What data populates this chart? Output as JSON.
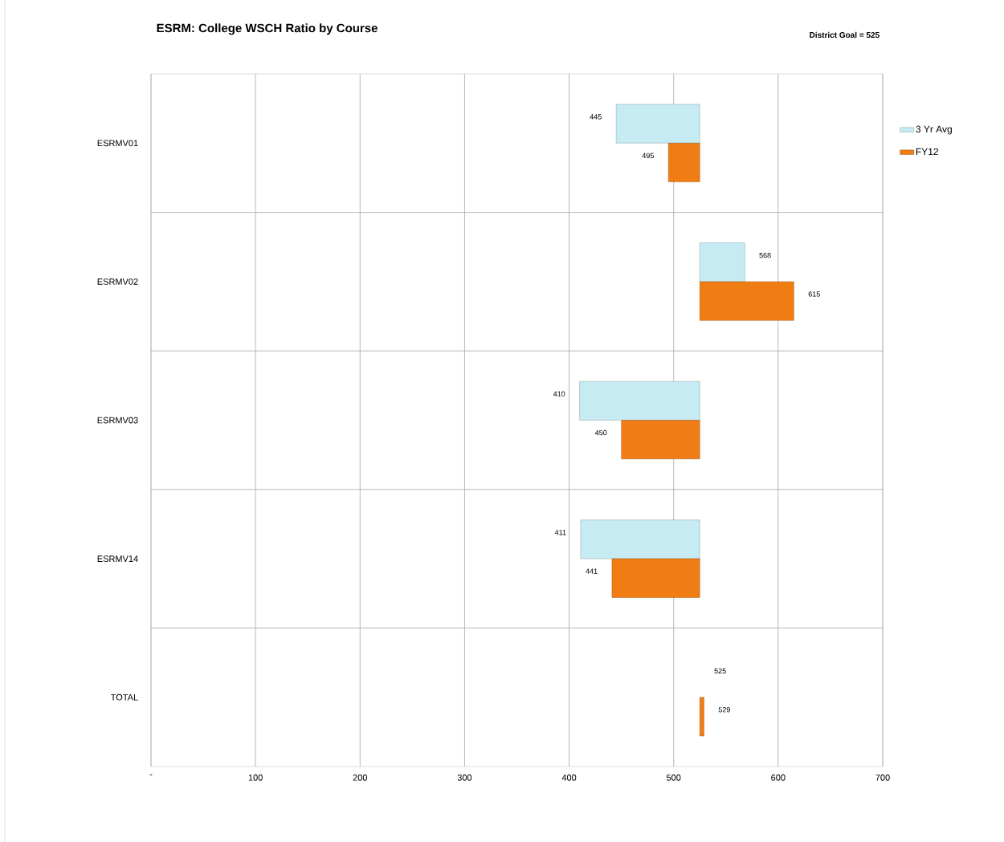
{
  "chart_data": {
    "type": "bar",
    "orientation": "horizontal",
    "title": "ESRM: College WSCH Ratio by Course",
    "annotations": [
      "District Goal = 525",
      "525"
    ],
    "categories": [
      "ESRMV01",
      "ESRMV02",
      "ESRMV03",
      "ESRMV14",
      "TOTAL"
    ],
    "series": [
      {
        "name": "3 Yr Avg",
        "color": "#c6ebf3",
        "base": [
          525,
          525,
          525,
          525,
          null
        ],
        "values": [
          -80,
          43,
          -115,
          -114,
          null
        ],
        "value_labels": [
          "445",
          "568",
          "410",
          "411",
          null
        ]
      },
      {
        "name": "FY12",
        "color": "#f07d14",
        "base": [
          525,
          525,
          525,
          525,
          525
        ],
        "values": [
          -30,
          90,
          -75,
          -84,
          4
        ],
        "value_labels": [
          "495",
          "615",
          "450",
          "441",
          "529"
        ]
      }
    ],
    "xlim": [
      0,
      700
    ],
    "xticks": [
      {
        "value": 0,
        "label": "-"
      },
      100,
      200,
      300,
      400,
      500,
      600,
      700
    ],
    "grid": true,
    "legend": "right"
  }
}
